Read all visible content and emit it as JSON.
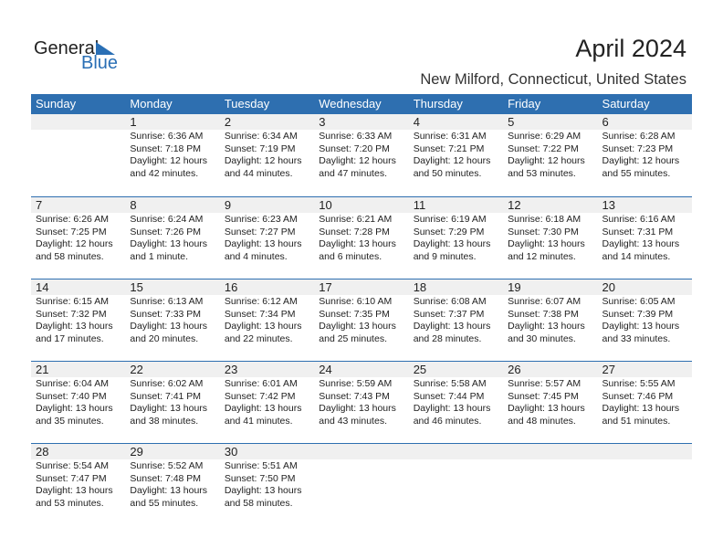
{
  "logo": {
    "general": "General",
    "blue": "Blue"
  },
  "title": "April 2024",
  "subtitle": "New Milford, Connecticut, United States",
  "colors": {
    "header": "#2e6fb0",
    "date_bar": "#f0f0f0",
    "logo_blue": "#2a6fb5"
  },
  "weekdays": [
    "Sunday",
    "Monday",
    "Tuesday",
    "Wednesday",
    "Thursday",
    "Friday",
    "Saturday"
  ],
  "weeks": [
    [
      null,
      {
        "day": "1",
        "sunrise": "Sunrise: 6:36 AM",
        "sunset": "Sunset: 7:18 PM",
        "daylight": "Daylight: 12 hours",
        "minutes": "and 42 minutes."
      },
      {
        "day": "2",
        "sunrise": "Sunrise: 6:34 AM",
        "sunset": "Sunset: 7:19 PM",
        "daylight": "Daylight: 12 hours",
        "minutes": "and 44 minutes."
      },
      {
        "day": "3",
        "sunrise": "Sunrise: 6:33 AM",
        "sunset": "Sunset: 7:20 PM",
        "daylight": "Daylight: 12 hours",
        "minutes": "and 47 minutes."
      },
      {
        "day": "4",
        "sunrise": "Sunrise: 6:31 AM",
        "sunset": "Sunset: 7:21 PM",
        "daylight": "Daylight: 12 hours",
        "minutes": "and 50 minutes."
      },
      {
        "day": "5",
        "sunrise": "Sunrise: 6:29 AM",
        "sunset": "Sunset: 7:22 PM",
        "daylight": "Daylight: 12 hours",
        "minutes": "and 53 minutes."
      },
      {
        "day": "6",
        "sunrise": "Sunrise: 6:28 AM",
        "sunset": "Sunset: 7:23 PM",
        "daylight": "Daylight: 12 hours",
        "minutes": "and 55 minutes."
      }
    ],
    [
      {
        "day": "7",
        "sunrise": "Sunrise: 6:26 AM",
        "sunset": "Sunset: 7:25 PM",
        "daylight": "Daylight: 12 hours",
        "minutes": "and 58 minutes."
      },
      {
        "day": "8",
        "sunrise": "Sunrise: 6:24 AM",
        "sunset": "Sunset: 7:26 PM",
        "daylight": "Daylight: 13 hours",
        "minutes": "and 1 minute."
      },
      {
        "day": "9",
        "sunrise": "Sunrise: 6:23 AM",
        "sunset": "Sunset: 7:27 PM",
        "daylight": "Daylight: 13 hours",
        "minutes": "and 4 minutes."
      },
      {
        "day": "10",
        "sunrise": "Sunrise: 6:21 AM",
        "sunset": "Sunset: 7:28 PM",
        "daylight": "Daylight: 13 hours",
        "minutes": "and 6 minutes."
      },
      {
        "day": "11",
        "sunrise": "Sunrise: 6:19 AM",
        "sunset": "Sunset: 7:29 PM",
        "daylight": "Daylight: 13 hours",
        "minutes": "and 9 minutes."
      },
      {
        "day": "12",
        "sunrise": "Sunrise: 6:18 AM",
        "sunset": "Sunset: 7:30 PM",
        "daylight": "Daylight: 13 hours",
        "minutes": "and 12 minutes."
      },
      {
        "day": "13",
        "sunrise": "Sunrise: 6:16 AM",
        "sunset": "Sunset: 7:31 PM",
        "daylight": "Daylight: 13 hours",
        "minutes": "and 14 minutes."
      }
    ],
    [
      {
        "day": "14",
        "sunrise": "Sunrise: 6:15 AM",
        "sunset": "Sunset: 7:32 PM",
        "daylight": "Daylight: 13 hours",
        "minutes": "and 17 minutes."
      },
      {
        "day": "15",
        "sunrise": "Sunrise: 6:13 AM",
        "sunset": "Sunset: 7:33 PM",
        "daylight": "Daylight: 13 hours",
        "minutes": "and 20 minutes."
      },
      {
        "day": "16",
        "sunrise": "Sunrise: 6:12 AM",
        "sunset": "Sunset: 7:34 PM",
        "daylight": "Daylight: 13 hours",
        "minutes": "and 22 minutes."
      },
      {
        "day": "17",
        "sunrise": "Sunrise: 6:10 AM",
        "sunset": "Sunset: 7:35 PM",
        "daylight": "Daylight: 13 hours",
        "minutes": "and 25 minutes."
      },
      {
        "day": "18",
        "sunrise": "Sunrise: 6:08 AM",
        "sunset": "Sunset: 7:37 PM",
        "daylight": "Daylight: 13 hours",
        "minutes": "and 28 minutes."
      },
      {
        "day": "19",
        "sunrise": "Sunrise: 6:07 AM",
        "sunset": "Sunset: 7:38 PM",
        "daylight": "Daylight: 13 hours",
        "minutes": "and 30 minutes."
      },
      {
        "day": "20",
        "sunrise": "Sunrise: 6:05 AM",
        "sunset": "Sunset: 7:39 PM",
        "daylight": "Daylight: 13 hours",
        "minutes": "and 33 minutes."
      }
    ],
    [
      {
        "day": "21",
        "sunrise": "Sunrise: 6:04 AM",
        "sunset": "Sunset: 7:40 PM",
        "daylight": "Daylight: 13 hours",
        "minutes": "and 35 minutes."
      },
      {
        "day": "22",
        "sunrise": "Sunrise: 6:02 AM",
        "sunset": "Sunset: 7:41 PM",
        "daylight": "Daylight: 13 hours",
        "minutes": "and 38 minutes."
      },
      {
        "day": "23",
        "sunrise": "Sunrise: 6:01 AM",
        "sunset": "Sunset: 7:42 PM",
        "daylight": "Daylight: 13 hours",
        "minutes": "and 41 minutes."
      },
      {
        "day": "24",
        "sunrise": "Sunrise: 5:59 AM",
        "sunset": "Sunset: 7:43 PM",
        "daylight": "Daylight: 13 hours",
        "minutes": "and 43 minutes."
      },
      {
        "day": "25",
        "sunrise": "Sunrise: 5:58 AM",
        "sunset": "Sunset: 7:44 PM",
        "daylight": "Daylight: 13 hours",
        "minutes": "and 46 minutes."
      },
      {
        "day": "26",
        "sunrise": "Sunrise: 5:57 AM",
        "sunset": "Sunset: 7:45 PM",
        "daylight": "Daylight: 13 hours",
        "minutes": "and 48 minutes."
      },
      {
        "day": "27",
        "sunrise": "Sunrise: 5:55 AM",
        "sunset": "Sunset: 7:46 PM",
        "daylight": "Daylight: 13 hours",
        "minutes": "and 51 minutes."
      }
    ],
    [
      {
        "day": "28",
        "sunrise": "Sunrise: 5:54 AM",
        "sunset": "Sunset: 7:47 PM",
        "daylight": "Daylight: 13 hours",
        "minutes": "and 53 minutes."
      },
      {
        "day": "29",
        "sunrise": "Sunrise: 5:52 AM",
        "sunset": "Sunset: 7:48 PM",
        "daylight": "Daylight: 13 hours",
        "minutes": "and 55 minutes."
      },
      {
        "day": "30",
        "sunrise": "Sunrise: 5:51 AM",
        "sunset": "Sunset: 7:50 PM",
        "daylight": "Daylight: 13 hours",
        "minutes": "and 58 minutes."
      },
      null,
      null,
      null,
      null
    ]
  ]
}
